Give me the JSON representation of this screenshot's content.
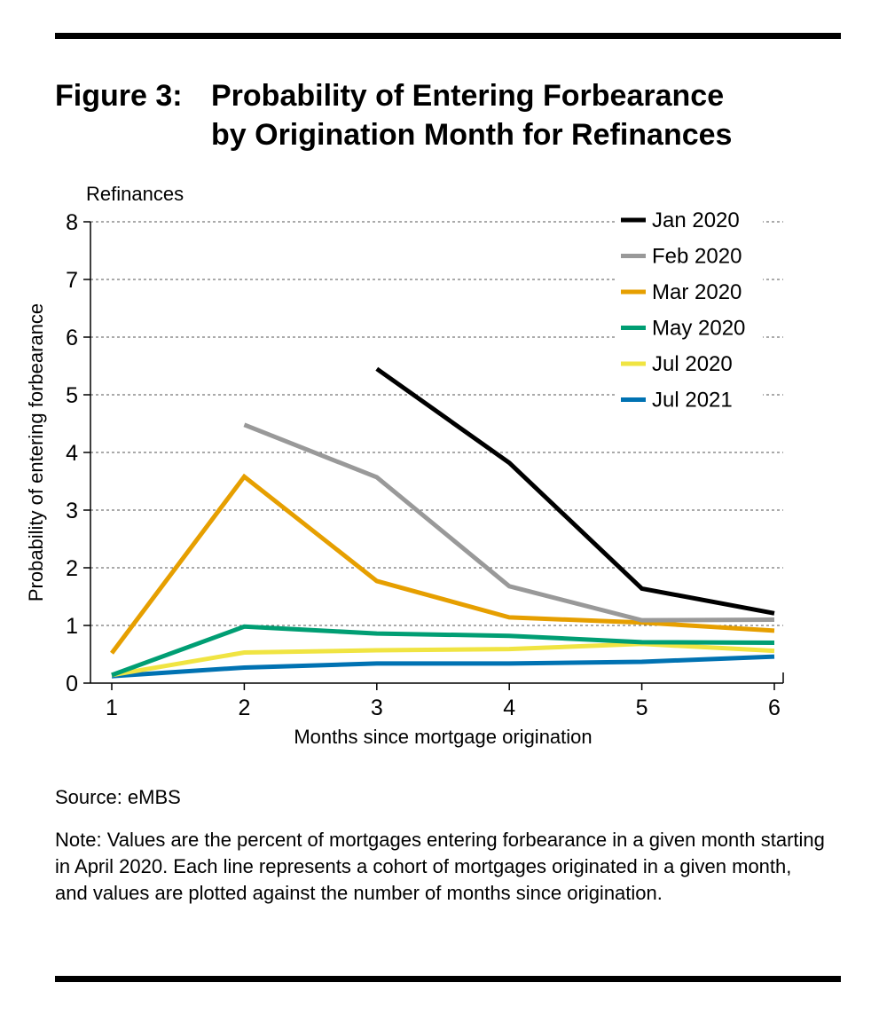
{
  "figure": {
    "label": "Figure 3:",
    "title_line1": "Probability of Entering Forbearance",
    "title_line2": "by Origination Month for Refinances"
  },
  "source": "Source: eMBS",
  "note": "Note: Values are the percent of mortgages entering forbearance in a given month starting in April 2020. Each line represents a cohort of mortgages originated in a given month, and values are plotted against the number of months since origination.",
  "chart_data": {
    "type": "line",
    "subtitle": "Refinances",
    "xlabel": "Months since mortgage origination",
    "ylabel": "Probability of entering forbearance",
    "xlim": [
      1,
      6
    ],
    "ylim": [
      0,
      8
    ],
    "xticks": [
      1,
      2,
      3,
      4,
      5,
      6
    ],
    "yticks": [
      0,
      1,
      2,
      3,
      4,
      5,
      6,
      7,
      8
    ],
    "grid": "horizontal dotted",
    "legend_position": "top-right",
    "series": [
      {
        "name": "Jan 2020",
        "color": "#000000",
        "x": [
          3,
          4,
          5,
          6
        ],
        "y": [
          5.45,
          3.82,
          1.64,
          1.21
        ]
      },
      {
        "name": "Feb 2020",
        "color": "#999999",
        "x": [
          2,
          3,
          4,
          5,
          6
        ],
        "y": [
          4.48,
          3.57,
          1.68,
          1.09,
          1.1
        ]
      },
      {
        "name": "Mar 2020",
        "color": "#e69f00",
        "x": [
          1,
          2,
          3,
          4,
          5,
          6
        ],
        "y": [
          0.52,
          3.58,
          1.77,
          1.14,
          1.05,
          0.91
        ]
      },
      {
        "name": "May 2020",
        "color": "#009e73",
        "x": [
          1,
          2,
          3,
          4,
          5,
          6
        ],
        "y": [
          0.14,
          0.98,
          0.86,
          0.82,
          0.71,
          0.7
        ]
      },
      {
        "name": "Jul 2020",
        "color": "#f0e442",
        "x": [
          1,
          2,
          3,
          4,
          5,
          6
        ],
        "y": [
          0.14,
          0.53,
          0.57,
          0.59,
          0.68,
          0.56
        ]
      },
      {
        "name": "Jul 2021",
        "color": "#0072b2",
        "x": [
          1,
          2,
          3,
          4,
          5,
          6
        ],
        "y": [
          0.12,
          0.27,
          0.34,
          0.34,
          0.37,
          0.46
        ]
      }
    ]
  }
}
